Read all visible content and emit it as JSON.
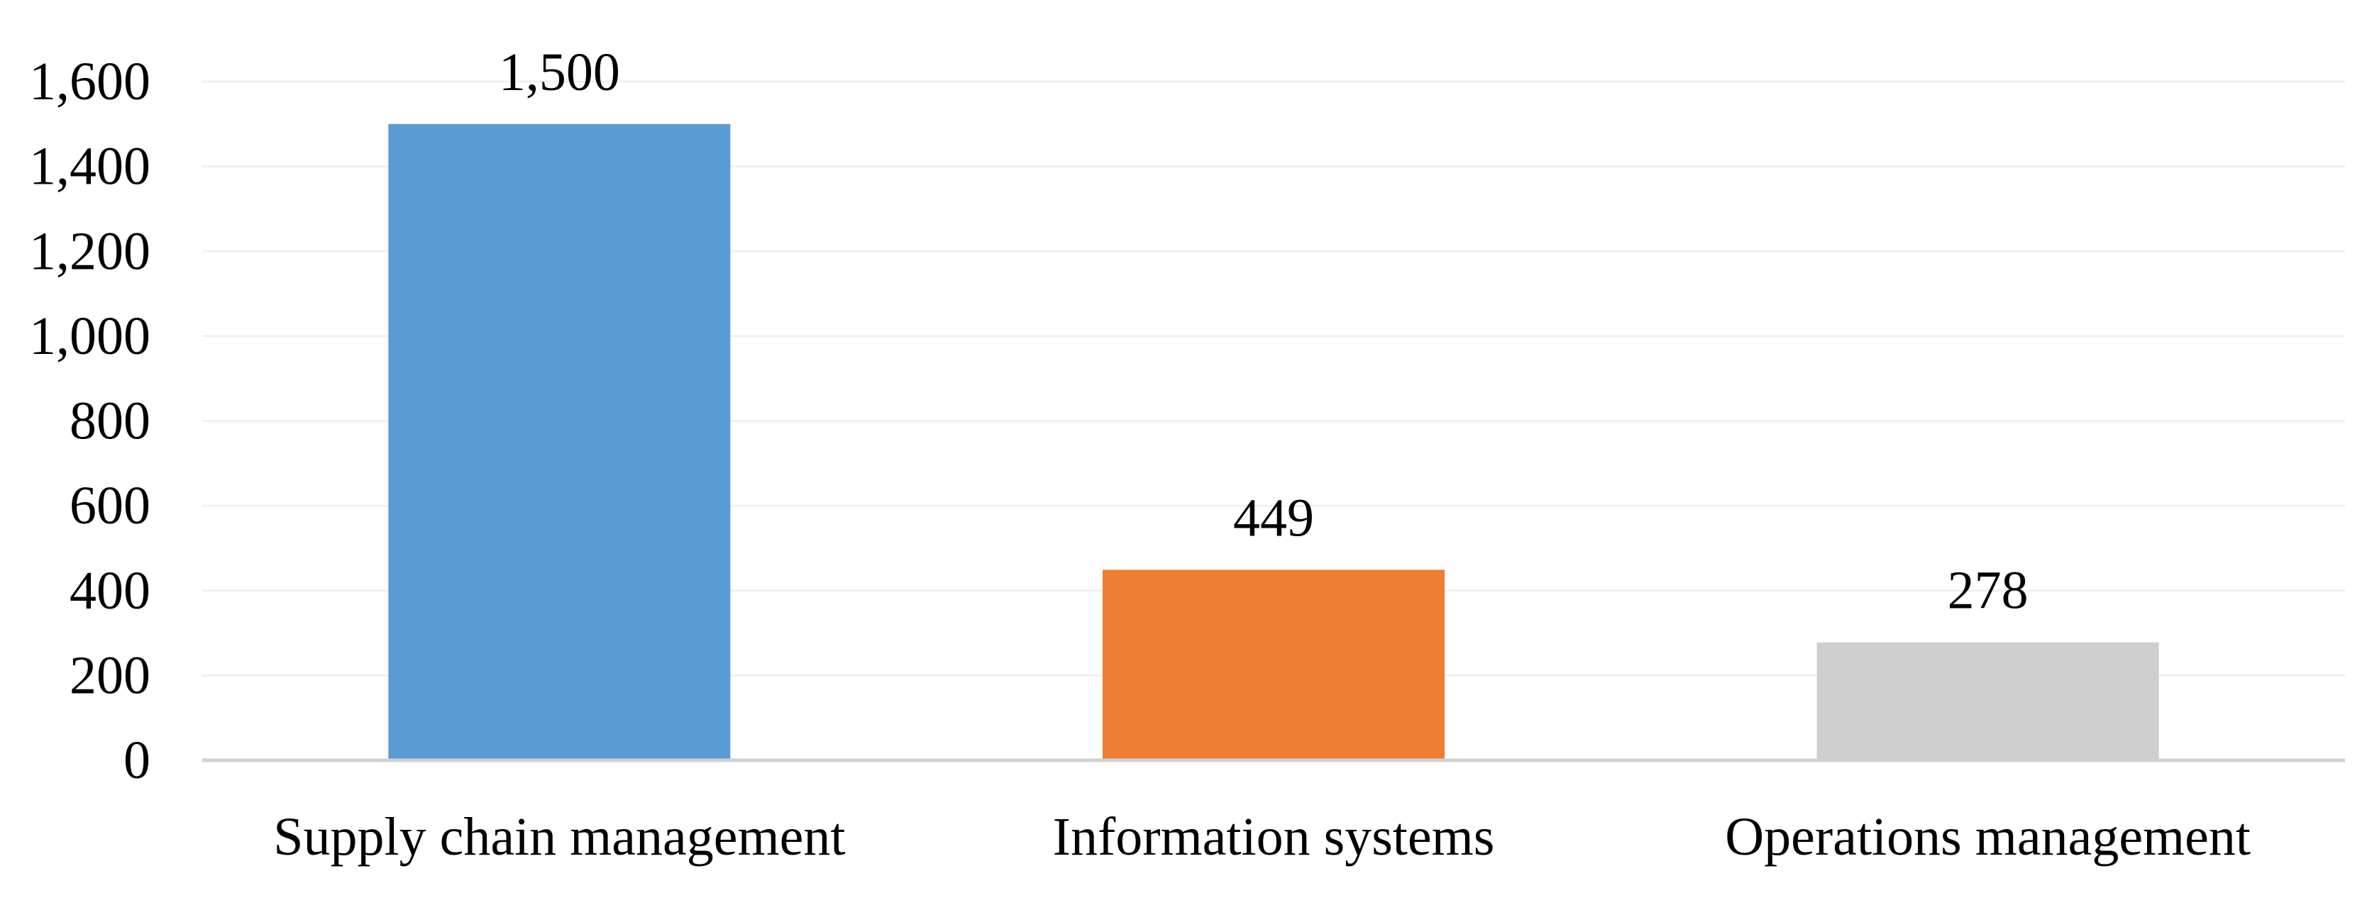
{
  "chart_data": {
    "type": "bar",
    "categories": [
      "Supply chain management",
      "Information systems",
      "Operations management"
    ],
    "values": [
      1500,
      449,
      278
    ],
    "data_labels": [
      "1,500",
      "449",
      "278"
    ],
    "bar_colors": [
      "#5B9BD5",
      "#ED7D31",
      "#CFCECE"
    ],
    "title": "",
    "xlabel": "",
    "ylabel": "",
    "ylim": [
      0,
      1600
    ],
    "yticks": [
      0,
      200,
      400,
      600,
      800,
      1000,
      1200,
      1400,
      1600
    ],
    "ytick_labels": [
      "0",
      "200",
      "400",
      "600",
      "800",
      "1,000",
      "1,200",
      "1,400",
      "1,600"
    ],
    "grid": true,
    "legend": "none"
  }
}
